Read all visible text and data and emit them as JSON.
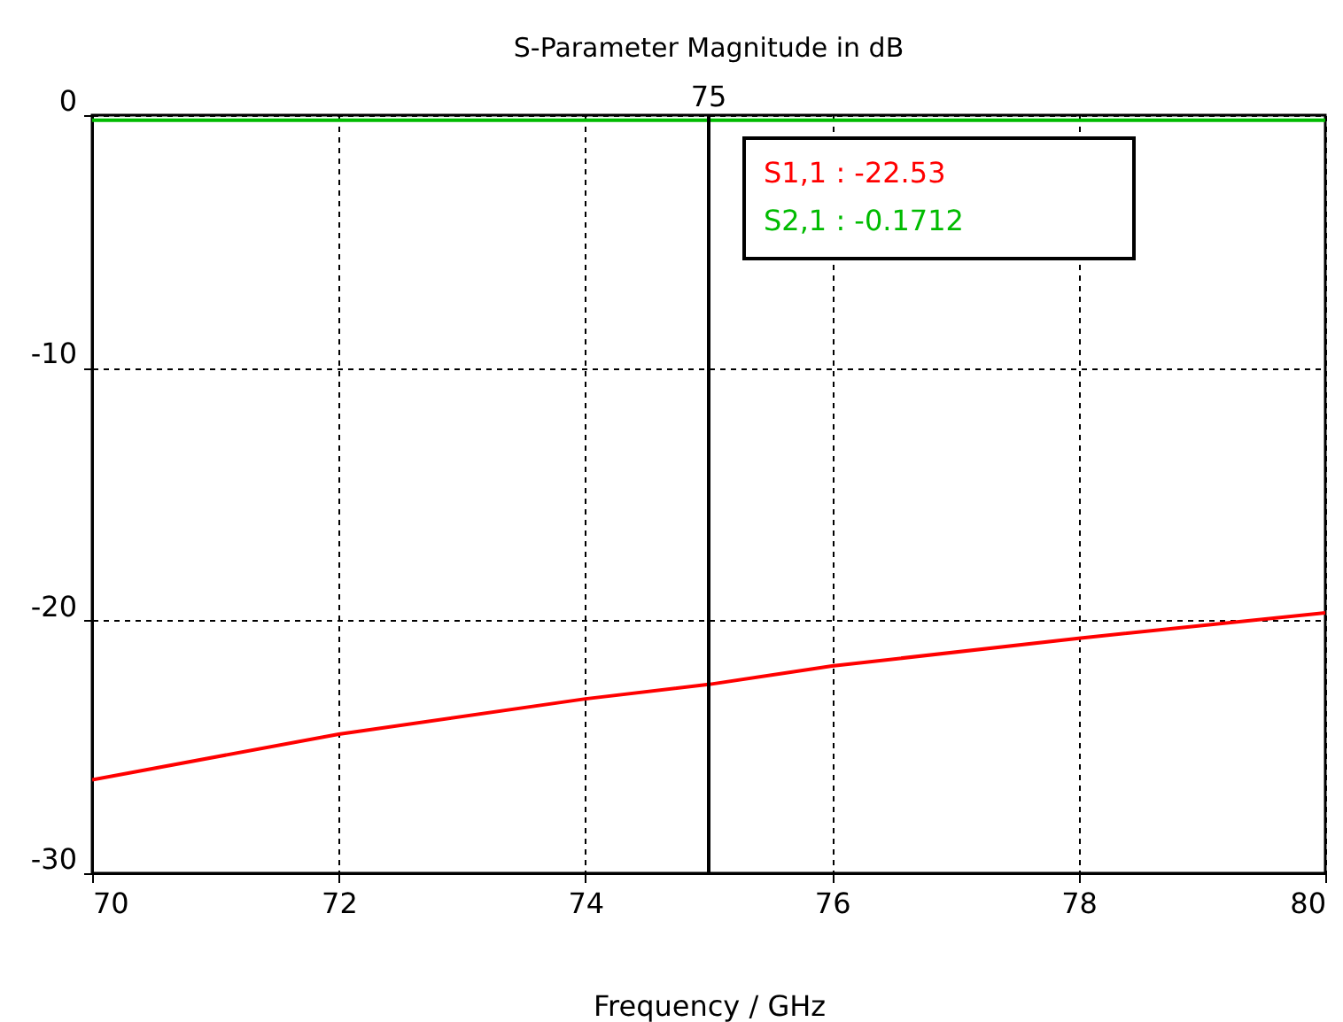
{
  "chart_data": {
    "type": "line",
    "title": "S-Parameter Magnitude in dB",
    "xlabel": "Frequency / GHz",
    "x": [
      70,
      72,
      74,
      75,
      76,
      78,
      80
    ],
    "series": [
      {
        "color": "#ff0000",
        "values": [
          -26.3,
          -24.5,
          -23.1,
          -22.53,
          -21.8,
          -20.7,
          -19.7
        ]
      },
      {
        "color": "#00bb00",
        "values": [
          -0.2,
          -0.2,
          -0.2,
          -0.2,
          -0.2,
          -0.2,
          -0.2
        ]
      }
    ],
    "xlim": [
      70,
      80
    ],
    "xticks": [
      70,
      72,
      74,
      76,
      78,
      80
    ],
    "ylim": [
      -30,
      0
    ],
    "yticks": [
      -30,
      -20,
      -10,
      0
    ],
    "grid": true,
    "line_style": "solid",
    "ref_lines": [
      {
        "axis": "x",
        "value": 75,
        "label": "75",
        "color": "#000000"
      }
    ],
    "annotations": [
      "S1,1 : -22.53",
      "S2,1 : -0.1712"
    ]
  }
}
